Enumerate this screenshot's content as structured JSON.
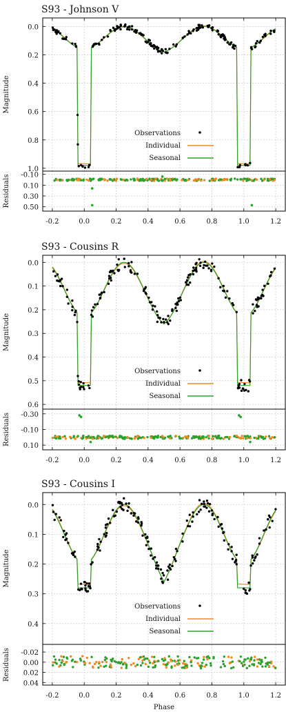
{
  "figure": {
    "xlabel": "Phase"
  },
  "chart_data": [
    {
      "type": "scatter",
      "title": "S93 - Johnson V",
      "ylabel": "Magnitude",
      "ylim": [
        1.02,
        -0.06
      ],
      "yticks": [
        "0.0",
        "0.2",
        "0.4",
        "0.6",
        "0.8",
        "1.0"
      ],
      "ytick_values": [
        0.0,
        0.2,
        0.4,
        0.6,
        0.8,
        1.0
      ],
      "xlim": [
        -0.26,
        1.26
      ],
      "xticks": [
        "-0.2",
        "0.0",
        "0.2",
        "0.4",
        "0.6",
        "0.8",
        "1.0",
        "1.2"
      ],
      "xtick_values": [
        -0.2,
        0.0,
        0.2,
        0.4,
        0.6,
        0.8,
        1.0,
        1.2
      ],
      "grid": true,
      "legend_position": "lower-right",
      "eclipse": {
        "primary_depth": 0.98,
        "outside_min": 0.0,
        "outside_max": 0.16,
        "secondary_depth": 0.18,
        "half_width": 0.045
      },
      "series": [
        {
          "name": "Observations",
          "kind": "points",
          "color": "#000000"
        },
        {
          "name": "Individual",
          "kind": "line",
          "color": "#f08a24"
        },
        {
          "name": "Seasonal",
          "kind": "line",
          "color": "#2ca02c"
        }
      ],
      "residuals": {
        "ylabel": "Residuals",
        "ylim": [
          0.58,
          -0.16
        ],
        "yticks": [
          "-0.10",
          "0.10",
          "0.30",
          "0.50"
        ],
        "ytick_values": [
          -0.1,
          0.1,
          0.3,
          0.5
        ],
        "scatter_spread": 0.02,
        "outliers": [
          [
            0.05,
            0.47
          ],
          [
            1.05,
            0.47
          ],
          [
            0.05,
            0.16
          ],
          [
            0.49,
            -0.06
          ]
        ]
      }
    },
    {
      "type": "scatter",
      "title": "S93 - Cousins R",
      "ylabel": "Magnitude",
      "ylim": [
        0.62,
        -0.03
      ],
      "yticks": [
        "0.0",
        "0.1",
        "0.2",
        "0.3",
        "0.4",
        "0.5",
        "0.6"
      ],
      "ytick_values": [
        0.0,
        0.1,
        0.2,
        0.3,
        0.4,
        0.5,
        0.6
      ],
      "xlim": [
        -0.26,
        1.26
      ],
      "xticks": [
        "-0.2",
        "0.0",
        "0.2",
        "0.4",
        "0.6",
        "0.8",
        "1.0",
        "1.2"
      ],
      "xtick_values": [
        -0.2,
        0.0,
        0.2,
        0.4,
        0.6,
        0.8,
        1.0,
        1.2
      ],
      "grid": true,
      "legend_position": "lower-right",
      "eclipse": {
        "primary_depth": 0.52,
        "outside_min": 0.0,
        "outside_max": 0.23,
        "secondary_depth": 0.26,
        "half_width": 0.045
      },
      "series": [
        {
          "name": "Observations",
          "kind": "points",
          "color": "#000000"
        },
        {
          "name": "Individual",
          "kind": "line",
          "color": "#f08a24"
        },
        {
          "name": "Seasonal",
          "kind": "line",
          "color": "#2ca02c"
        }
      ],
      "residuals": {
        "ylabel": "Residuals",
        "ylim": [
          0.16,
          -0.36
        ],
        "yticks": [
          "-0.30",
          "-0.10",
          "0.10"
        ],
        "ytick_values": [
          -0.3,
          -0.1,
          0.1
        ],
        "scatter_spread": 0.02,
        "outliers": [
          [
            -0.03,
            -0.28
          ],
          [
            -0.02,
            -0.26
          ],
          [
            0.97,
            -0.28
          ],
          [
            0.98,
            -0.26
          ],
          [
            0.04,
            0.06
          ],
          [
            1.04,
            0.06
          ]
        ]
      }
    },
    {
      "type": "scatter",
      "title": "S93 - Cousins I",
      "ylabel": "Magnitude",
      "ylim": [
        0.47,
        -0.04
      ],
      "yticks": [
        "0.0",
        "0.1",
        "0.2",
        "0.3",
        "0.4"
      ],
      "ytick_values": [
        0.0,
        0.1,
        0.2,
        0.3,
        0.4
      ],
      "xlim": [
        -0.26,
        1.26
      ],
      "xticks": [
        "-0.2",
        "0.0",
        "0.2",
        "0.4",
        "0.6",
        "0.8",
        "1.0",
        "1.2"
      ],
      "xtick_values": [
        -0.2,
        0.0,
        0.2,
        0.4,
        0.6,
        0.8,
        1.0,
        1.2
      ],
      "grid": true,
      "legend_position": "lower-right",
      "eclipse": {
        "primary_depth": 0.28,
        "outside_min": 0.0,
        "outside_max": 0.2,
        "secondary_depth": 0.26,
        "half_width": 0.045
      },
      "series": [
        {
          "name": "Observations",
          "kind": "points",
          "color": "#000000"
        },
        {
          "name": "Individual",
          "kind": "line",
          "color": "#f08a24"
        },
        {
          "name": "Seasonal",
          "kind": "line",
          "color": "#2ca02c"
        }
      ],
      "residuals": {
        "ylabel": "Residuals",
        "ylim": [
          0.045,
          -0.035
        ],
        "yticks": [
          "-0.02",
          "0.00",
          "0.02",
          "0.04"
        ],
        "ytick_values": [
          -0.02,
          0.0,
          0.02,
          0.04
        ],
        "scatter_spread": 0.012,
        "outliers": []
      }
    }
  ]
}
